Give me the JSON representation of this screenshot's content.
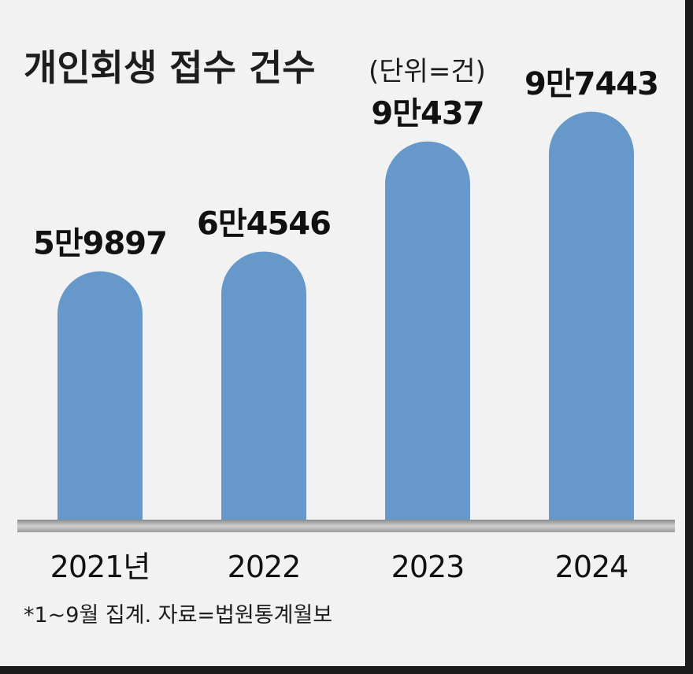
{
  "chart_data": {
    "type": "bar",
    "title": "개인회생 접수 건수",
    "unit": "(단위=건)",
    "categories": [
      "2021년",
      "2022",
      "2023",
      "2024"
    ],
    "values": [
      59897,
      64546,
      90437,
      97443
    ],
    "value_labels": [
      "5만9897",
      "6만4546",
      "9만437",
      "9만7443"
    ],
    "ylim": [
      0,
      100000
    ],
    "grid": false,
    "legend": "none",
    "bar_color": "#6699c9",
    "footnote": "*1~9월 집계. 자료=법원통계월보"
  }
}
